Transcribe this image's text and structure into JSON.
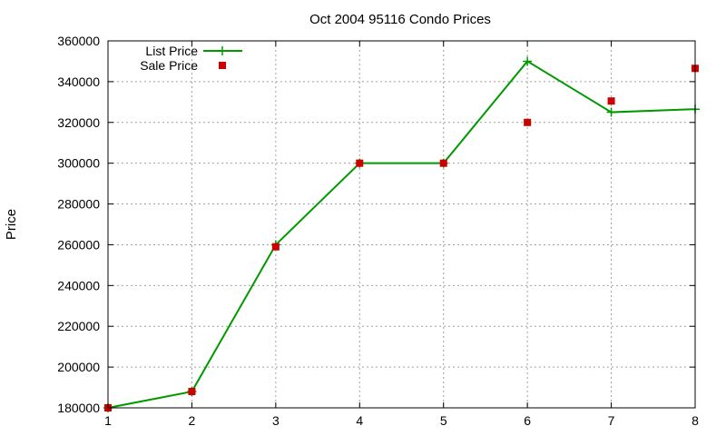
{
  "chart_data": {
    "type": "line",
    "title": "Oct 2004 95116 Condo Prices",
    "xlabel": "",
    "ylabel": "Price",
    "xlim": [
      1,
      8
    ],
    "ylim": [
      180000,
      360000
    ],
    "x_ticks": [
      1,
      2,
      3,
      4,
      5,
      6,
      7,
      8
    ],
    "y_ticks": [
      180000,
      200000,
      220000,
      240000,
      260000,
      280000,
      300000,
      320000,
      340000,
      360000
    ],
    "grid": true,
    "legend": "top-left",
    "series": [
      {
        "name": "List Price",
        "style": "lines+points",
        "marker": "plus",
        "color": "#009900",
        "points": [
          {
            "x": 1,
            "y": 180000
          },
          {
            "x": 2,
            "y": 188000
          },
          {
            "x": 3,
            "y": 260000
          },
          {
            "x": 4,
            "y": 300000
          },
          {
            "x": 5,
            "y": 300000
          },
          {
            "x": 6,
            "y": 350000
          },
          {
            "x": 7,
            "y": 325000
          },
          {
            "x": 8,
            "y": 326500
          }
        ]
      },
      {
        "name": "Sale Price",
        "style": "points",
        "marker": "square",
        "color": "#cc0000",
        "points": [
          {
            "x": 1,
            "y": 180000
          },
          {
            "x": 2,
            "y": 188000
          },
          {
            "x": 3,
            "y": 259000
          },
          {
            "x": 4,
            "y": 300000
          },
          {
            "x": 5,
            "y": 300000
          },
          {
            "x": 6,
            "y": 320000
          },
          {
            "x": 7,
            "y": 330500
          },
          {
            "x": 8,
            "y": 346500
          }
        ]
      }
    ]
  }
}
